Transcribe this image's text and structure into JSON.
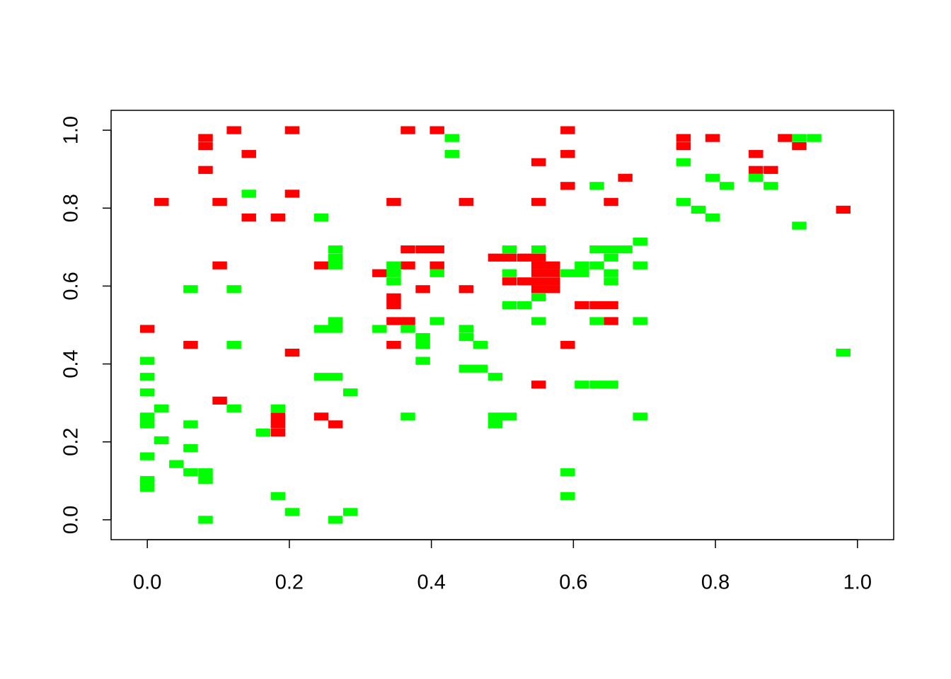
{
  "chart_data": {
    "type": "scatter",
    "marker": "rect",
    "xlim": [
      -0.051,
      1.051
    ],
    "ylim": [
      -0.051,
      1.051
    ],
    "xticks": [
      {
        "value": 0,
        "label": "0.0"
      },
      0.2,
      0.4,
      0.6,
      0.8,
      {
        "value": 1,
        "label": "1.0"
      }
    ],
    "yticks": [
      {
        "value": 0,
        "label": "0.0"
      },
      0.2,
      0.4,
      0.6,
      0.8,
      {
        "value": 1,
        "label": "1.0"
      }
    ],
    "series": [
      {
        "color": "#ff0000",
        "x": [
          0,
          0.02,
          0.082,
          0.082,
          0.082,
          0.122,
          0.143,
          0.204,
          0.102,
          0.204,
          0.143,
          0.184,
          0.102,
          0.061,
          0.204,
          0.102,
          0.184,
          0.184,
          0.184,
          0.245,
          0.265,
          0.245,
          0.367,
          0.408,
          0.347,
          0.449,
          0.327,
          0.367,
          0.408,
          0.367,
          0.388,
          0.408,
          0.347,
          0.347,
          0.347,
          0.367,
          0.347,
          0.388,
          0.449,
          0.592,
          0.551,
          0.592,
          0.592,
          0.551,
          0.653,
          0.673,
          0.49,
          0.51,
          0.531,
          0.551,
          0.551,
          0.571,
          0.551,
          0.571,
          0.551,
          0.571,
          0.551,
          0.571,
          0.51,
          0.531,
          0.592,
          0.551,
          0.612,
          0.633,
          0.653,
          0.653,
          0.755,
          0.755,
          0.796,
          0.857,
          0.857,
          0.878,
          0.898,
          0.918,
          0.98
        ],
        "values": [
          0.49,
          0.816,
          0.959,
          0.98,
          0.898,
          1,
          0.939,
          1,
          0.816,
          0.837,
          0.776,
          0.776,
          0.653,
          0.449,
          0.429,
          0.306,
          0.224,
          0.245,
          0.265,
          0.265,
          0.245,
          0.653,
          1,
          1,
          0.816,
          0.816,
          0.633,
          0.653,
          0.653,
          0.694,
          0.694,
          0.694,
          0.571,
          0.551,
          0.51,
          0.51,
          0.449,
          0.592,
          0.592,
          1,
          0.918,
          0.939,
          0.857,
          0.816,
          0.816,
          0.878,
          0.673,
          0.673,
          0.673,
          0.673,
          0.653,
          0.653,
          0.633,
          0.633,
          0.612,
          0.612,
          0.592,
          0.592,
          0.612,
          0.612,
          0.449,
          0.347,
          0.551,
          0.551,
          0.551,
          0.51,
          0.959,
          0.98,
          0.98,
          0.939,
          0.898,
          0.898,
          0.98,
          0.959,
          0.796
        ]
      },
      {
        "color": "#00ff00",
        "x": [
          0,
          0,
          0,
          0,
          0,
          0,
          0,
          0,
          0.02,
          0.02,
          0.041,
          0.061,
          0.061,
          0.061,
          0.061,
          0.082,
          0.082,
          0.082,
          0.122,
          0.122,
          0.122,
          0.143,
          0.163,
          0.184,
          0.184,
          0.204,
          0.245,
          0.245,
          0.265,
          0.245,
          0.265,
          0.265,
          0.265,
          0.265,
          0.265,
          0.286,
          0.286,
          0.265,
          0.327,
          0.347,
          0.347,
          0.347,
          0.367,
          0.367,
          0.388,
          0.388,
          0.388,
          0.408,
          0.408,
          0.429,
          0.429,
          0.449,
          0.449,
          0.469,
          0.449,
          0.469,
          0.49,
          0.49,
          0.49,
          0.51,
          0.51,
          0.51,
          0.51,
          0.531,
          0.551,
          0.551,
          0.551,
          0.592,
          0.612,
          0.612,
          0.633,
          0.592,
          0.592,
          0.633,
          0.633,
          0.653,
          0.673,
          0.653,
          0.653,
          0.653,
          0.633,
          0.612,
          0.633,
          0.653,
          0.694,
          0.694,
          0.694,
          0.694,
          0.755,
          0.755,
          0.776,
          0.796,
          0.796,
          0.816,
          0.857,
          0.878,
          0.918,
          0.918,
          0.939,
          0.98
        ],
        "values": [
          0.408,
          0.367,
          0.327,
          0.265,
          0.245,
          0.163,
          0.102,
          0.082,
          0.286,
          0.204,
          0.143,
          0.592,
          0.245,
          0.184,
          0.122,
          0.122,
          0.102,
          0,
          0.592,
          0.449,
          0.286,
          0.837,
          0.224,
          0.286,
          0.061,
          0.02,
          0.776,
          0.367,
          0.367,
          0.49,
          0.694,
          0.673,
          0.653,
          0.51,
          0.49,
          0.327,
          0.02,
          0,
          0.49,
          0.653,
          0.633,
          0.612,
          0.49,
          0.265,
          0.469,
          0.449,
          0.408,
          0.633,
          0.51,
          0.98,
          0.939,
          0.49,
          0.469,
          0.449,
          0.388,
          0.388,
          0.367,
          0.265,
          0.245,
          0.265,
          0.694,
          0.633,
          0.551,
          0.551,
          0.694,
          0.571,
          0.51,
          0.633,
          0.633,
          0.653,
          0.653,
          0.122,
          0.061,
          0.857,
          0.694,
          0.694,
          0.694,
          0.673,
          0.633,
          0.612,
          0.51,
          0.347,
          0.347,
          0.347,
          0.714,
          0.653,
          0.51,
          0.265,
          0.918,
          0.816,
          0.796,
          0.776,
          0.878,
          0.857,
          0.878,
          0.857,
          0.755,
          0.98,
          0.98,
          0.429
        ]
      }
    ]
  }
}
